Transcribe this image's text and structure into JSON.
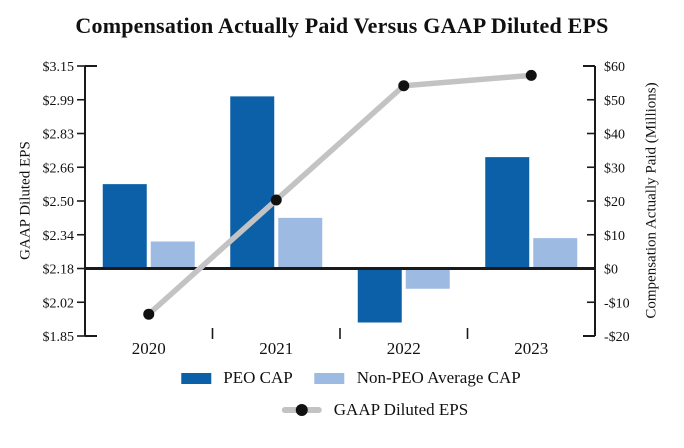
{
  "title": "Compensation Actually Paid Versus GAAP Diluted EPS",
  "colors": {
    "peo_cap": "#0B60A7",
    "non_peo_cap": "#9CBAE2",
    "eps_line": "#C3C3C3",
    "eps_marker": "#111111",
    "axis": "#1A1A1A",
    "background": "#FFFFFF"
  },
  "chart_data": {
    "type": "bar",
    "subtype": "combo-dual-axis-bar-line",
    "title": "Compensation Actually Paid Versus GAAP Diluted EPS",
    "categories": [
      "2020",
      "2021",
      "2022",
      "2023"
    ],
    "series": [
      {
        "name": "PEO CAP",
        "kind": "bar",
        "axis": "right",
        "values_millions": [
          25,
          51,
          -16,
          33
        ]
      },
      {
        "name": "Non-PEO Average CAP",
        "kind": "bar",
        "axis": "right",
        "values_millions": [
          8,
          15,
          -6,
          9
        ]
      },
      {
        "name": "GAAP Diluted EPS",
        "kind": "line",
        "axis": "left",
        "values_dollars": [
          1.96,
          2.51,
          3.06,
          3.11
        ]
      }
    ],
    "left_axis": {
      "title": "GAAP Diluted EPS",
      "tick_labels": [
        "$3.15",
        "$2.99",
        "$2.83",
        "$2.66",
        "$2.50",
        "$2.34",
        "$2.18",
        "$2.02",
        "$1.85"
      ],
      "min": 1.85,
      "max": 3.15,
      "zero_aligned_value": 2.18,
      "tick_interval": 0.1625
    },
    "right_axis": {
      "title": "Compensation Actually Paid (Millions)",
      "tick_labels": [
        "$60",
        "$50",
        "$40",
        "$30",
        "$20",
        "$10",
        "$0",
        "-$10",
        "-$20"
      ],
      "min": -20,
      "max": 60,
      "tick_interval": 10
    },
    "grid": false,
    "legend_position": "bottom"
  }
}
